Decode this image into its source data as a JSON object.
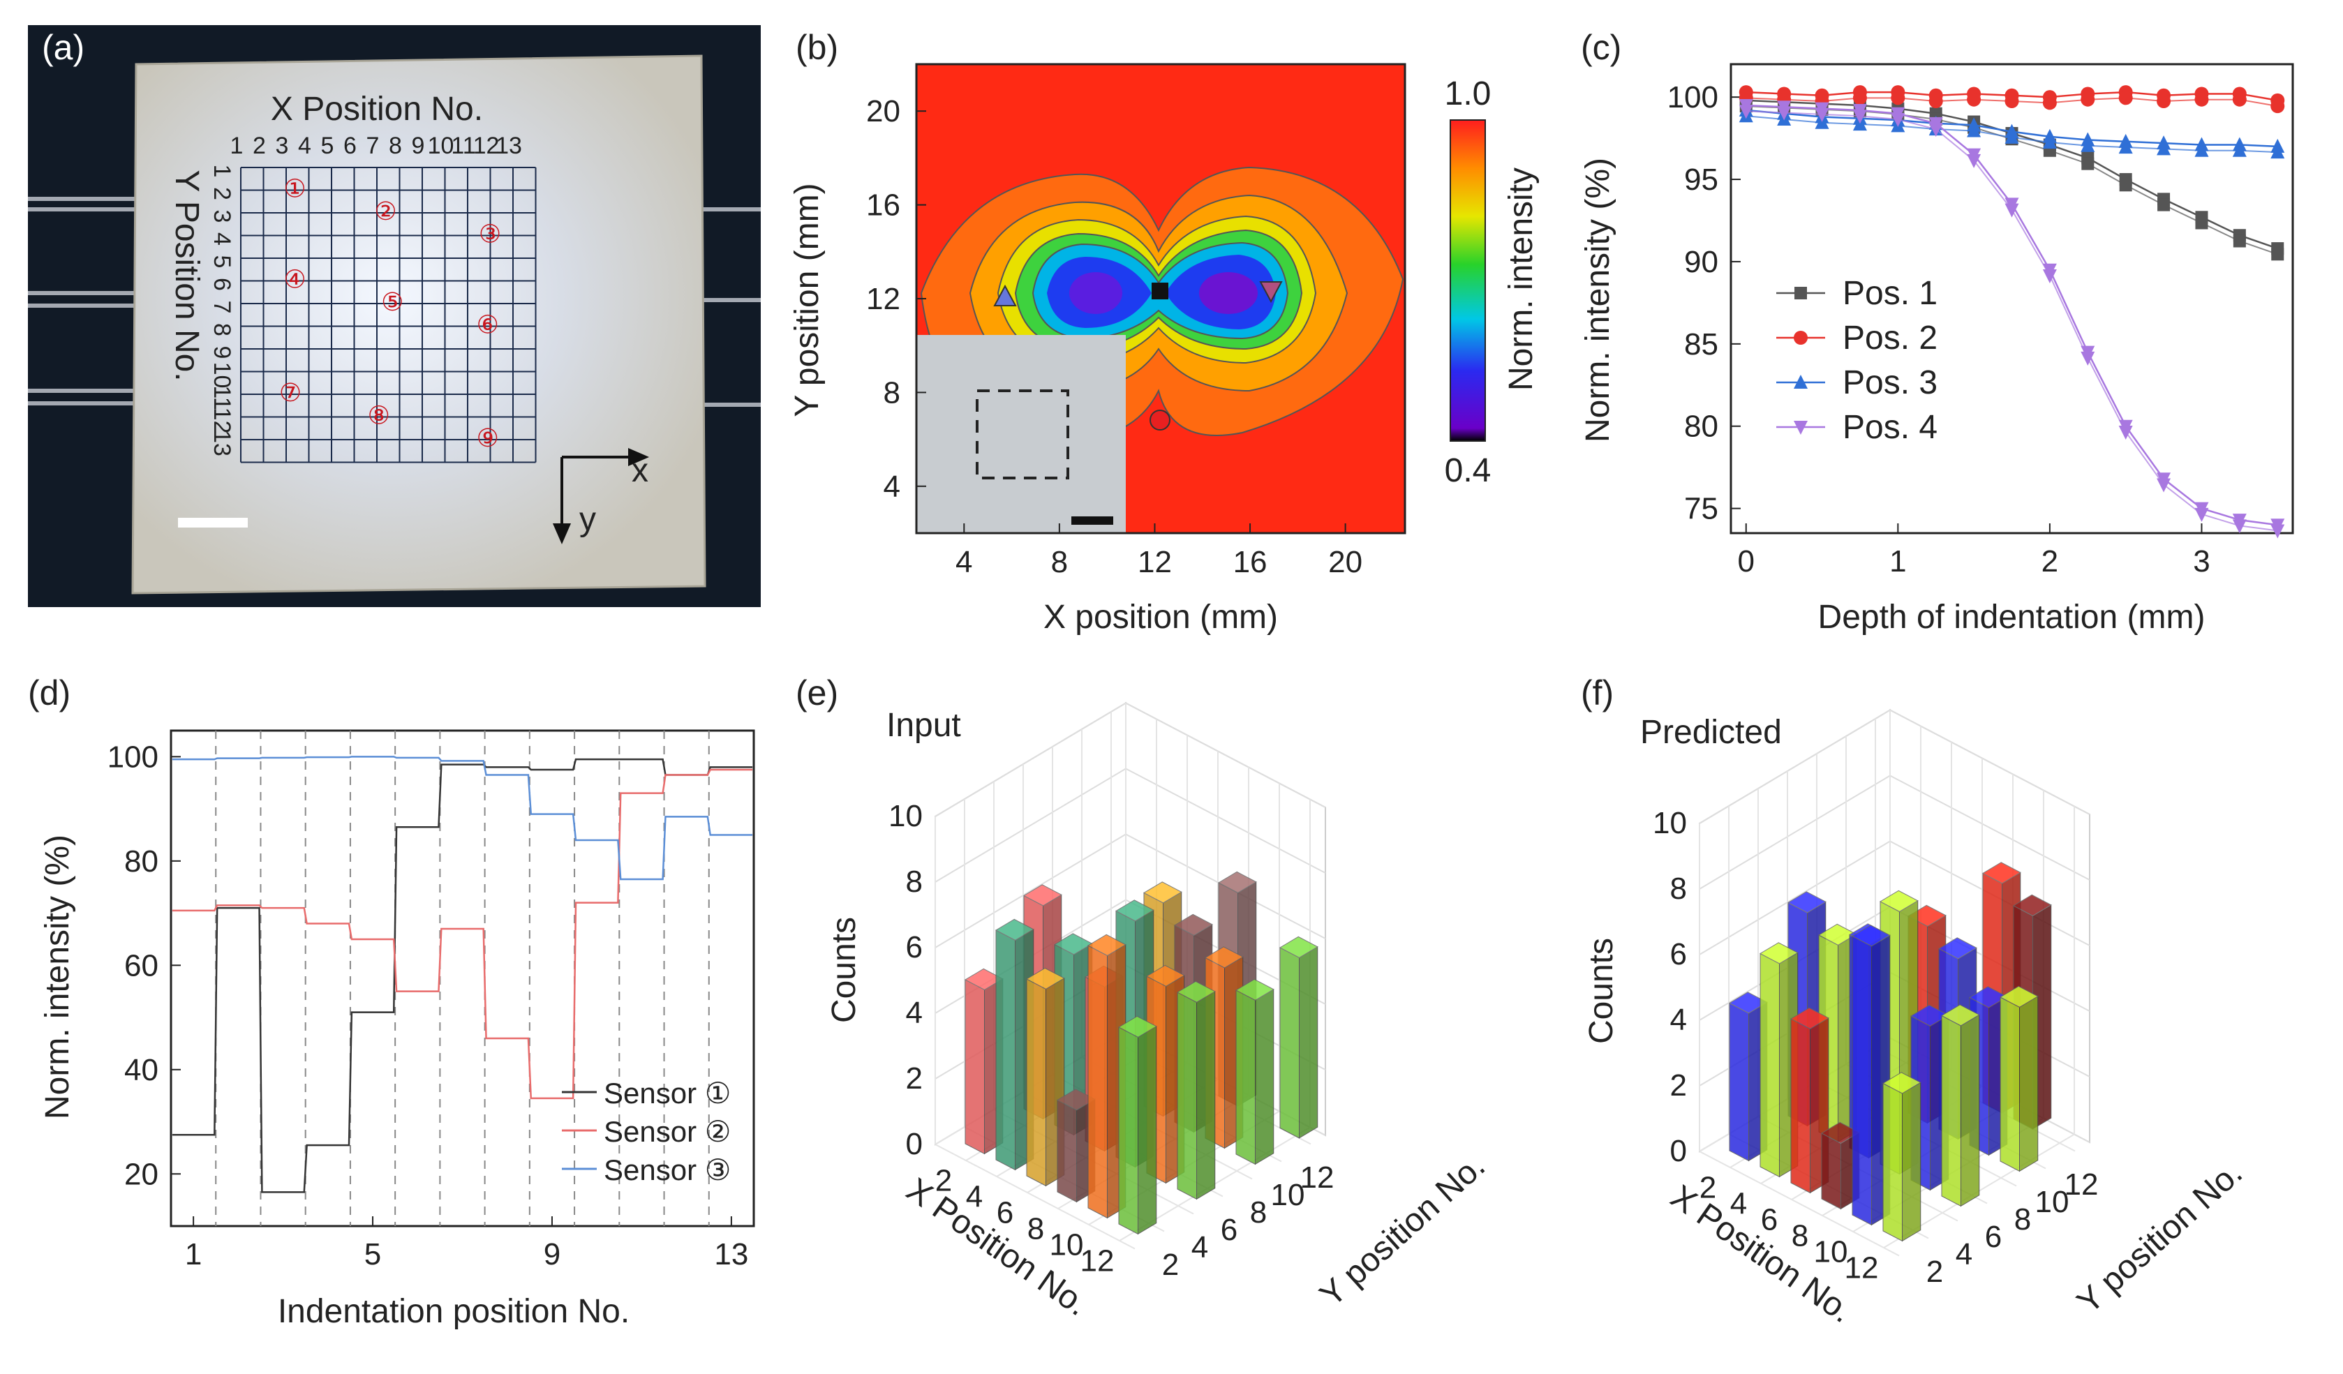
{
  "panels": {
    "a": {
      "label": "(a)",
      "x_title": "X Position No.",
      "y_title": "Y Position No.",
      "x_numbers": [
        "1",
        "2",
        "3",
        "4",
        "5",
        "6",
        "7",
        "8",
        "9",
        "10",
        "11",
        "12",
        "13"
      ],
      "y_numbers": [
        "1",
        "2",
        "3",
        "4",
        "5",
        "6",
        "7",
        "8",
        "9",
        "10",
        "11",
        "12",
        "13"
      ],
      "markers": [
        "①",
        "②",
        "③",
        "④",
        "⑤",
        "⑥",
        "⑦",
        "⑧",
        "⑨"
      ],
      "axis_x": "x",
      "axis_y": "y"
    },
    "b": {
      "label": "(b)",
      "xlabel": "X position (mm)",
      "ylabel": "Y position (mm)",
      "xticks": [
        "4",
        "8",
        "12",
        "16",
        "20"
      ],
      "yticks": [
        "4",
        "8",
        "12",
        "16",
        "20"
      ],
      "colorbar_label": "Norm. intensity",
      "colorbar_max": "1.0",
      "colorbar_min": "0.4"
    },
    "c": {
      "label": "(c)",
      "xlabel": "Depth of indentation (mm)",
      "ylabel": "Norm. intensity (%)",
      "xticks": [
        "0",
        "1",
        "2",
        "3"
      ],
      "yticks": [
        "75",
        "80",
        "85",
        "90",
        "95",
        "100"
      ]
    },
    "d": {
      "label": "(d)",
      "xlabel": "Indentation position No.",
      "ylabel": "Norm. intensity (%)",
      "xticks": [
        "1",
        "5",
        "9",
        "13"
      ],
      "yticks": [
        "20",
        "40",
        "60",
        "80",
        "100"
      ]
    },
    "e": {
      "label": "(e)",
      "title": "Input",
      "zlabel": "Counts",
      "xlabel": "X Position No.",
      "ylabel": "Y position No.",
      "zticks": [
        "0",
        "2",
        "4",
        "6",
        "8",
        "10"
      ],
      "xticks": [
        "2",
        "4",
        "6",
        "8",
        "10",
        "12"
      ],
      "yticks": [
        "2",
        "4",
        "6",
        "8",
        "10",
        "12"
      ]
    },
    "f": {
      "label": "(f)",
      "title": "Predicted",
      "zlabel": "Counts",
      "xlabel": "X Position No.",
      "ylabel": "Y position No.",
      "zticks": [
        "0",
        "2",
        "4",
        "6",
        "8",
        "10"
      ],
      "xticks": [
        "2",
        "4",
        "6",
        "8",
        "10",
        "12"
      ],
      "yticks": [
        "2",
        "4",
        "6",
        "8",
        "10",
        "12"
      ]
    }
  },
  "chart_data": [
    {
      "panel": "c",
      "type": "line",
      "xlabel": "Depth of indentation (mm)",
      "ylabel": "Norm. intensity (%)",
      "xlim": [
        -0.1,
        3.6
      ],
      "ylim": [
        73.5,
        102
      ],
      "x": [
        0,
        0.25,
        0.5,
        0.75,
        1.0,
        1.25,
        1.5,
        1.75,
        2.0,
        2.25,
        2.5,
        2.75,
        3.0,
        3.25,
        3.5
      ],
      "series": [
        {
          "name": "Pos. 1",
          "color": "#555555",
          "marker": "square",
          "values": [
            99.8,
            99.7,
            99.6,
            99.5,
            99.3,
            99.0,
            98.5,
            97.8,
            97.1,
            96.3,
            95.0,
            93.8,
            92.7,
            91.6,
            90.8
          ]
        },
        {
          "name": "Pos. 2",
          "color": "#e8322c",
          "marker": "circle",
          "values": [
            100.3,
            100.2,
            100.1,
            100.3,
            100.3,
            100.1,
            100.2,
            100.1,
            100.0,
            100.2,
            100.3,
            100.1,
            100.2,
            100.2,
            99.8
          ]
        },
        {
          "name": "Pos. 3",
          "color": "#2f6fd6",
          "marker": "triangle-up",
          "values": [
            99.2,
            99.0,
            98.8,
            98.7,
            98.6,
            98.4,
            98.3,
            97.9,
            97.6,
            97.4,
            97.3,
            97.2,
            97.1,
            97.1,
            97.0
          ]
        },
        {
          "name": "Pos. 4",
          "color": "#a877e0",
          "marker": "triangle-down",
          "values": [
            99.5,
            99.4,
            99.3,
            99.2,
            99.0,
            98.4,
            96.5,
            93.5,
            89.5,
            84.5,
            80.0,
            76.8,
            75.0,
            74.3,
            74.0
          ]
        }
      ]
    },
    {
      "panel": "d",
      "type": "line",
      "xlabel": "Indentation position No.",
      "ylabel": "Norm. intensity (%)",
      "xlim": [
        0.5,
        13.5
      ],
      "ylim": [
        10,
        105
      ],
      "categories": [
        1,
        2,
        3,
        4,
        5,
        6,
        7,
        8,
        9,
        10,
        11,
        12,
        13
      ],
      "series": [
        {
          "name": "Sensor ①",
          "color": "#333333",
          "values": [
            27.5,
            71,
            16.5,
            25.5,
            51,
            86.5,
            98.5,
            98,
            97.5,
            99.5,
            99.5,
            96.5,
            98
          ]
        },
        {
          "name": "Sensor ②",
          "color": "#e86b6b",
          "values": [
            70.5,
            71.5,
            71,
            68,
            65,
            55,
            67,
            46,
            34.5,
            72,
            93,
            96.5,
            97.5
          ]
        },
        {
          "name": "Sensor ③",
          "color": "#5b8ed6",
          "values": [
            99.5,
            99.7,
            99.8,
            99.9,
            100,
            99.8,
            99.2,
            96.5,
            89,
            84,
            76.5,
            88.5,
            85
          ]
        }
      ]
    },
    {
      "panel": "e",
      "type": "bar3d",
      "title": "Input",
      "zlabel": "Counts",
      "zlim": [
        0,
        10
      ],
      "bars": [
        {
          "x": 1,
          "y": 1,
          "value": 5.0,
          "color": "#e05b5b"
        },
        {
          "x": 3,
          "y": 1,
          "value": 7.0,
          "color": "#3e9a74"
        },
        {
          "x": 5,
          "y": 1,
          "value": 6.0,
          "color": "#d6a02a"
        },
        {
          "x": 7,
          "y": 1,
          "value": 2.8,
          "color": "#7a4a4a"
        },
        {
          "x": 9,
          "y": 1,
          "value": 8.0,
          "color": "#ef6f1e"
        },
        {
          "x": 11,
          "y": 1,
          "value": 6.0,
          "color": "#6cbf3a"
        },
        {
          "x": 1,
          "y": 5,
          "value": 6.5,
          "color": "#e05b5b"
        },
        {
          "x": 3,
          "y": 5,
          "value": 5.5,
          "color": "#3e9a74"
        },
        {
          "x": 5,
          "y": 5,
          "value": 5.0,
          "color": "#e05b5b"
        },
        {
          "x": 7,
          "y": 5,
          "value": 7.5,
          "color": "#3e9a74"
        },
        {
          "x": 9,
          "y": 5,
          "value": 6.0,
          "color": "#ef6f1e"
        },
        {
          "x": 11,
          "y": 5,
          "value": 6.0,
          "color": "#6cbf3a"
        },
        {
          "x": 5,
          "y": 9,
          "value": 6.5,
          "color": "#d6a02a"
        },
        {
          "x": 7,
          "y": 9,
          "value": 6.0,
          "color": "#7a4a4a"
        },
        {
          "x": 9,
          "y": 9,
          "value": 5.5,
          "color": "#ef6f1e"
        },
        {
          "x": 11,
          "y": 9,
          "value": 5.0,
          "color": "#6cbf3a"
        },
        {
          "x": 7,
          "y": 12,
          "value": 6.5,
          "color": "#8a6060"
        },
        {
          "x": 11,
          "y": 12,
          "value": 5.5,
          "color": "#6cbf3a"
        }
      ]
    },
    {
      "panel": "f",
      "type": "bar3d",
      "title": "Predicted",
      "zlabel": "Counts",
      "zlim": [
        0,
        10
      ],
      "bars": [
        {
          "x": 1,
          "y": 1,
          "value": 4.5,
          "color": "#2a2ae0"
        },
        {
          "x": 3,
          "y": 1,
          "value": 6.5,
          "color": "#aee02a"
        },
        {
          "x": 5,
          "y": 1,
          "value": 5.0,
          "color": "#e02a1a"
        },
        {
          "x": 7,
          "y": 1,
          "value": 2.0,
          "color": "#7a1a1a"
        },
        {
          "x": 9,
          "y": 1,
          "value": 8.5,
          "color": "#2a2ae0"
        },
        {
          "x": 11,
          "y": 1,
          "value": 4.5,
          "color": "#aee02a"
        },
        {
          "x": 1,
          "y": 5,
          "value": 6.5,
          "color": "#2a2ae0"
        },
        {
          "x": 3,
          "y": 5,
          "value": 6.0,
          "color": "#aee02a"
        },
        {
          "x": 5,
          "y": 5,
          "value": 6.5,
          "color": "#2a2ae0"
        },
        {
          "x": 7,
          "y": 5,
          "value": 8.0,
          "color": "#aee02a"
        },
        {
          "x": 9,
          "y": 5,
          "value": 5.0,
          "color": "#2a2ae0"
        },
        {
          "x": 11,
          "y": 5,
          "value": 5.5,
          "color": "#aee02a"
        },
        {
          "x": 5,
          "y": 9,
          "value": 6.0,
          "color": "#e02a1a"
        },
        {
          "x": 7,
          "y": 9,
          "value": 5.5,
          "color": "#2a2ae0"
        },
        {
          "x": 9,
          "y": 9,
          "value": 4.5,
          "color": "#2a2ae0"
        },
        {
          "x": 11,
          "y": 9,
          "value": 5.0,
          "color": "#aee02a"
        },
        {
          "x": 7,
          "y": 12,
          "value": 7.0,
          "color": "#e02a1a"
        },
        {
          "x": 9,
          "y": 12,
          "value": 6.5,
          "color": "#7a1a1a"
        }
      ]
    }
  ]
}
